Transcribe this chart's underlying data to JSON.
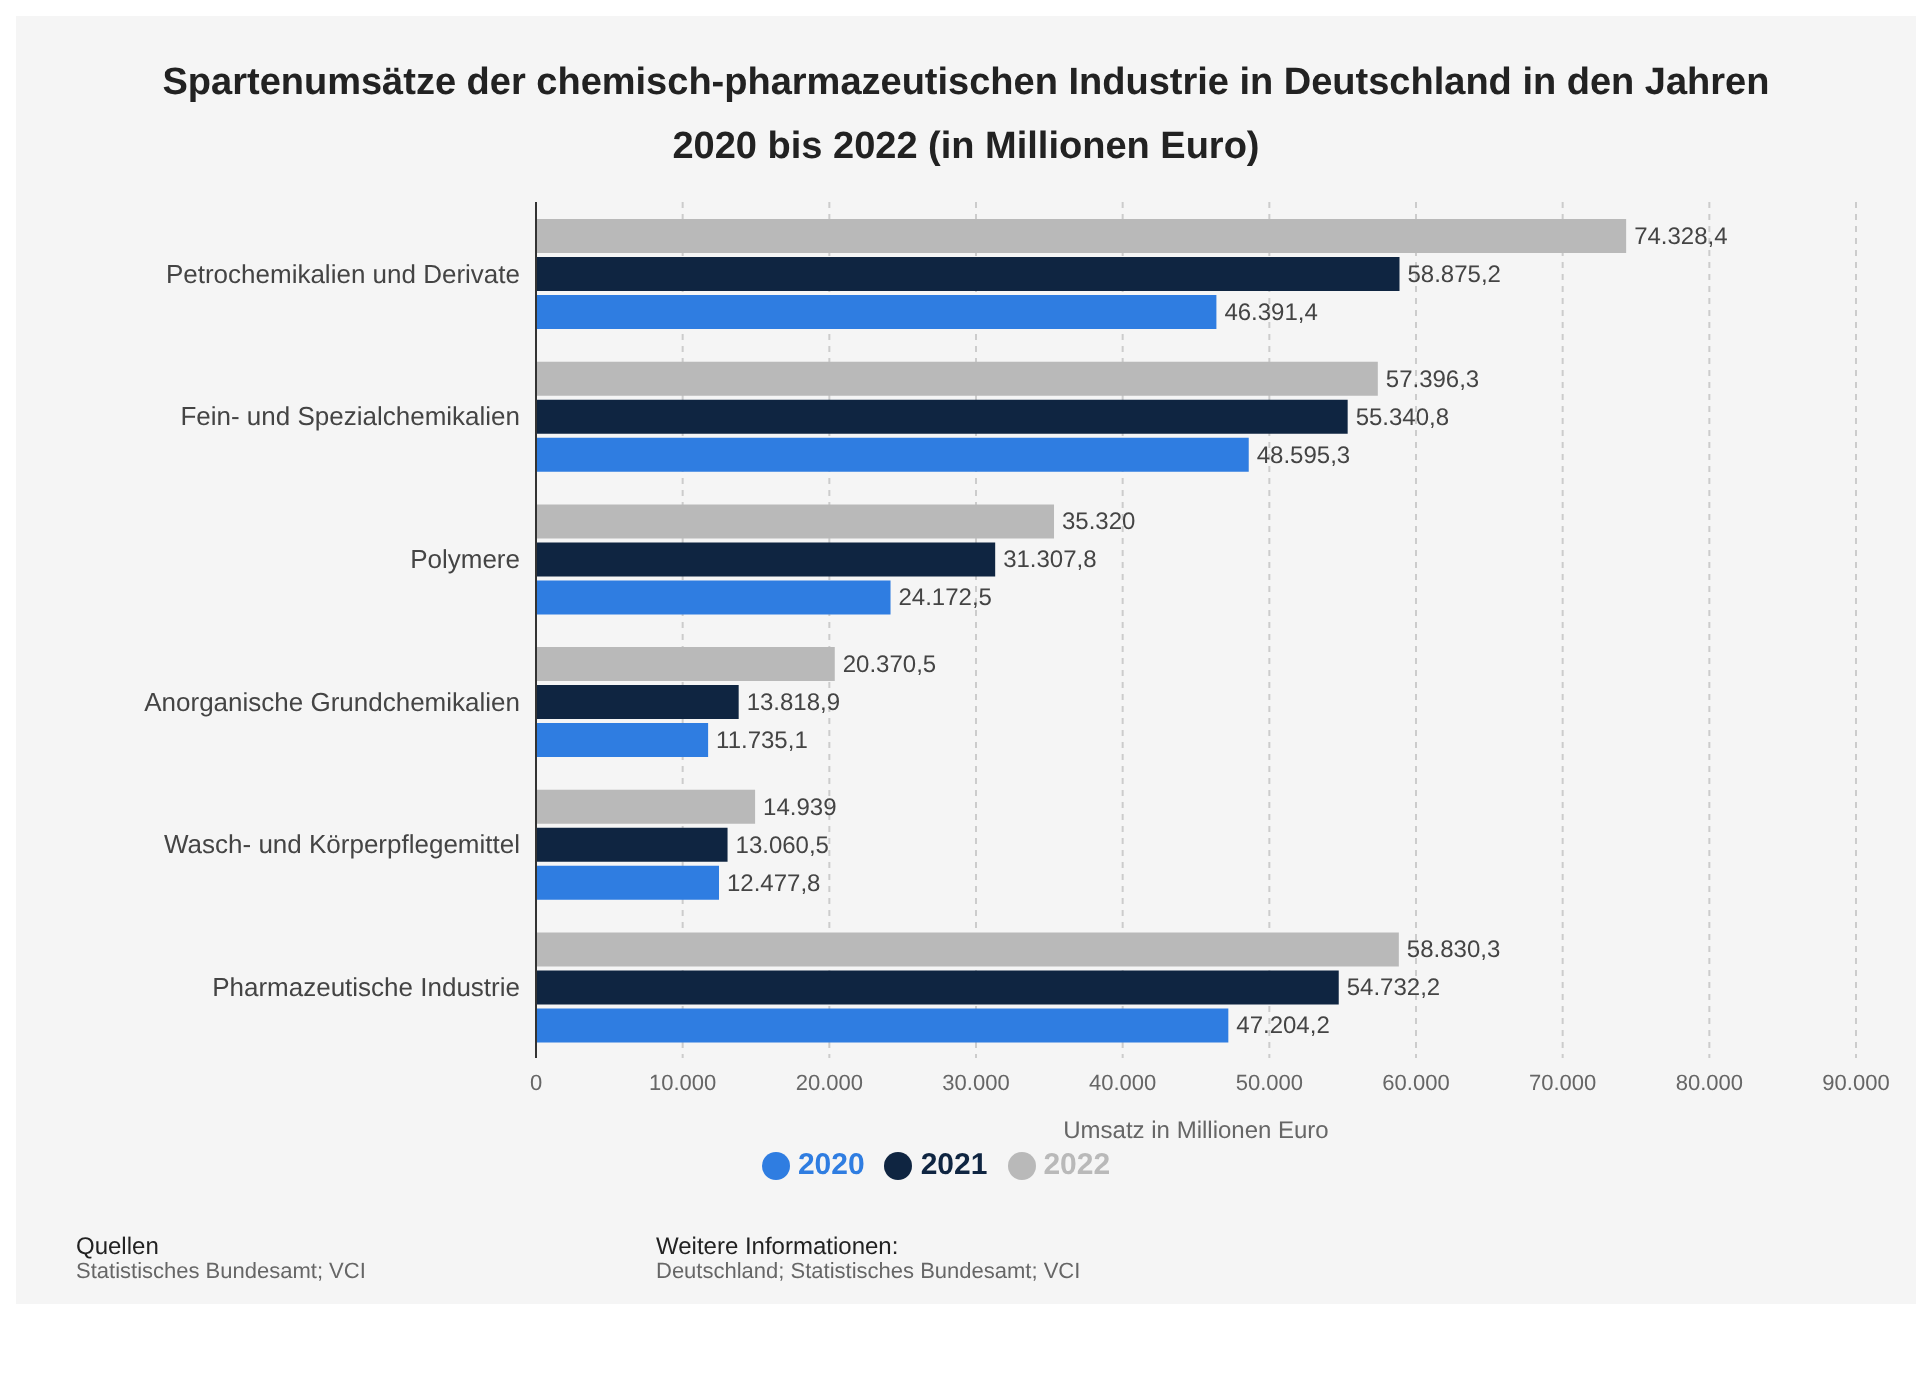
{
  "chart_data": {
    "type": "bar",
    "orientation": "horizontal",
    "title": "Spartenumsätze der chemisch-pharmazeutischen Industrie in Deutschland in den Jahren 2020 bis 2022 (in Millionen Euro)",
    "xlabel": "Umsatz in Millionen Euro",
    "categories": [
      "Petrochemikalien und Derivate",
      "Fein- und Spezialchemikalien",
      "Polymere",
      "Anorganische Grundchemikalien",
      "Wasch- und Körperpflegemittel",
      "Pharmazeutische Industrie"
    ],
    "series": [
      {
        "name": "2020",
        "color": "#2f7de1",
        "values": [
          46391.4,
          48595.3,
          24172.5,
          11735.1,
          12477.8,
          47204.2
        ],
        "value_labels": [
          "46.391,4",
          "48.595,3",
          "24.172,5",
          "11.735,1",
          "12.477,8",
          "47.204,2"
        ]
      },
      {
        "name": "2021",
        "color": "#0f2541",
        "values": [
          58875.2,
          55340.8,
          31307.8,
          13818.9,
          13060.5,
          54732.2
        ],
        "value_labels": [
          "58.875,2",
          "55.340,8",
          "31.307,8",
          "13.818,9",
          "13.060,5",
          "54.732,2"
        ]
      },
      {
        "name": "2022",
        "color": "#b9b9b9",
        "values": [
          74328.4,
          57396.3,
          35320,
          20370.5,
          14939,
          58830.3
        ],
        "value_labels": [
          "74.328,4",
          "57.396,3",
          "35.320",
          "20.370,5",
          "14.939",
          "58.830,3"
        ]
      }
    ],
    "xlim": [
      0,
      90000
    ],
    "xticks": [
      0,
      {
        "value": 10000,
        "label": "10.000"
      },
      {
        "value": 20000,
        "label": "20.000"
      },
      {
        "value": 30000,
        "label": "30.000"
      },
      {
        "value": 40000,
        "label": "40.000"
      },
      {
        "value": 50000,
        "label": "50.000"
      },
      {
        "value": 60000,
        "label": "60.000"
      },
      {
        "value": 70000,
        "label": "70.000"
      },
      {
        "value": 80000,
        "label": "80.000"
      },
      {
        "value": 90000,
        "label": "90.000"
      }
    ],
    "grid": "x",
    "legend": "bottom",
    "annotations": [
      "Quellen",
      "Statistisches Bundesamt; VCI",
      "Weitere Informationen:",
      "Deutschland; Statistisches Bundesamt; VCI"
    ]
  }
}
